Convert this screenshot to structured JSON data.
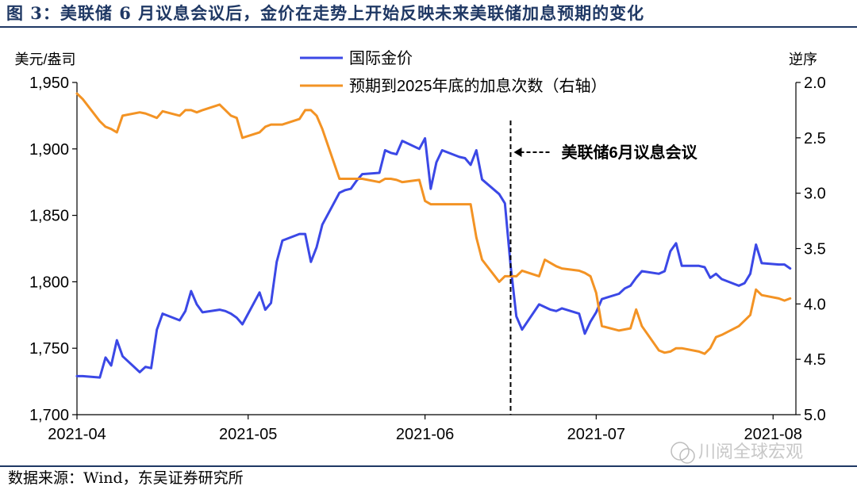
{
  "title": "图 3：美联储 6 月议息会议后，金价在走势上开始反映未来美联储加息预期的变化",
  "source": "数据来源：Wind，东吴证券研究所",
  "watermark": "川阅全球宏观",
  "colors": {
    "gold": "#3b48e6",
    "hikes": "#f39324",
    "title": "#1f3864",
    "axis": "#000000"
  },
  "chart_data": {
    "type": "line",
    "ylabel_left": "美元/盎司",
    "ylabel_right": "逆序",
    "y_left": {
      "min": 1700,
      "max": 1950,
      "ticks": [
        1700,
        1750,
        1800,
        1850,
        1900,
        1950
      ],
      "tick_labels": [
        "1,700",
        "1,750",
        "1,800",
        "1,850",
        "1,900",
        "1,950"
      ]
    },
    "y_right": {
      "min": 2.0,
      "max": 5.0,
      "inverted": true,
      "ticks": [
        2.0,
        2.5,
        3.0,
        3.5,
        4.0,
        4.5,
        5.0
      ],
      "tick_labels": [
        "2.0",
        "2.5",
        "3.0",
        "3.5",
        "4.0",
        "4.5",
        "5.0"
      ]
    },
    "x": {
      "start": "2021-04-01",
      "end": "2021-08-05",
      "ticks": [
        "2021-04-01",
        "2021-05-01",
        "2021-06-01",
        "2021-07-01",
        "2021-08-01"
      ],
      "tick_labels": [
        "2021-04",
        "2021-05",
        "2021-06",
        "2021-07",
        "2021-08"
      ]
    },
    "legend_position": "top-center",
    "annotation": {
      "label": "美联储6月议息会议",
      "date": "2021-06-16"
    },
    "series": [
      {
        "name": "国际金价",
        "axis": "left",
        "color": "#3b48e6",
        "points": [
          [
            "2021-04-01",
            1729
          ],
          [
            "2021-04-02",
            1729
          ],
          [
            "2021-04-05",
            1728
          ],
          [
            "2021-04-06",
            1743
          ],
          [
            "2021-04-07",
            1737
          ],
          [
            "2021-04-08",
            1756
          ],
          [
            "2021-04-09",
            1744
          ],
          [
            "2021-04-12",
            1732
          ],
          [
            "2021-04-13",
            1736
          ],
          [
            "2021-04-14",
            1735
          ],
          [
            "2021-04-15",
            1764
          ],
          [
            "2021-04-16",
            1776
          ],
          [
            "2021-04-19",
            1771
          ],
          [
            "2021-04-20",
            1778
          ],
          [
            "2021-04-21",
            1793
          ],
          [
            "2021-04-22",
            1783
          ],
          [
            "2021-04-23",
            1777
          ],
          [
            "2021-04-26",
            1779
          ],
          [
            "2021-04-27",
            1778
          ],
          [
            "2021-04-28",
            1776
          ],
          [
            "2021-04-29",
            1773
          ],
          [
            "2021-04-30",
            1768
          ],
          [
            "2021-05-03",
            1792
          ],
          [
            "2021-05-04",
            1779
          ],
          [
            "2021-05-05",
            1784
          ],
          [
            "2021-05-06",
            1815
          ],
          [
            "2021-05-07",
            1831
          ],
          [
            "2021-05-10",
            1836
          ],
          [
            "2021-05-11",
            1836
          ],
          [
            "2021-05-12",
            1815
          ],
          [
            "2021-05-13",
            1826
          ],
          [
            "2021-05-14",
            1843
          ],
          [
            "2021-05-17",
            1867
          ],
          [
            "2021-05-18",
            1869
          ],
          [
            "2021-05-19",
            1870
          ],
          [
            "2021-05-20",
            1876
          ],
          [
            "2021-05-21",
            1881
          ],
          [
            "2021-05-24",
            1882
          ],
          [
            "2021-05-25",
            1899
          ],
          [
            "2021-05-26",
            1897
          ],
          [
            "2021-05-27",
            1896
          ],
          [
            "2021-05-28",
            1906
          ],
          [
            "2021-05-31",
            1900
          ],
          [
            "2021-06-01",
            1908
          ],
          [
            "2021-06-02",
            1870
          ],
          [
            "2021-06-03",
            1890
          ],
          [
            "2021-06-04",
            1899
          ],
          [
            "2021-06-07",
            1894
          ],
          [
            "2021-06-08",
            1893
          ],
          [
            "2021-06-09",
            1888
          ],
          [
            "2021-06-10",
            1899
          ],
          [
            "2021-06-11",
            1877
          ],
          [
            "2021-06-14",
            1866
          ],
          [
            "2021-06-15",
            1859
          ],
          [
            "2021-06-16",
            1812
          ],
          [
            "2021-06-17",
            1774
          ],
          [
            "2021-06-18",
            1764
          ],
          [
            "2021-06-21",
            1783
          ],
          [
            "2021-06-22",
            1781
          ],
          [
            "2021-06-23",
            1779
          ],
          [
            "2021-06-24",
            1778
          ],
          [
            "2021-06-25",
            1780
          ],
          [
            "2021-06-28",
            1776
          ],
          [
            "2021-06-29",
            1761
          ],
          [
            "2021-06-30",
            1770
          ],
          [
            "2021-07-01",
            1777
          ],
          [
            "2021-07-02",
            1787
          ],
          [
            "2021-07-05",
            1791
          ],
          [
            "2021-07-06",
            1795
          ],
          [
            "2021-07-07",
            1797
          ],
          [
            "2021-07-08",
            1803
          ],
          [
            "2021-07-09",
            1808
          ],
          [
            "2021-07-12",
            1806
          ],
          [
            "2021-07-13",
            1808
          ],
          [
            "2021-07-14",
            1823
          ],
          [
            "2021-07-15",
            1829
          ],
          [
            "2021-07-16",
            1812
          ],
          [
            "2021-07-19",
            1812
          ],
          [
            "2021-07-20",
            1811
          ],
          [
            "2021-07-21",
            1803
          ],
          [
            "2021-07-22",
            1806
          ],
          [
            "2021-07-23",
            1802
          ],
          [
            "2021-07-26",
            1797
          ],
          [
            "2021-07-27",
            1799
          ],
          [
            "2021-07-28",
            1806
          ],
          [
            "2021-07-29",
            1828
          ],
          [
            "2021-07-30",
            1814
          ],
          [
            "2021-08-02",
            1813
          ],
          [
            "2021-08-03",
            1813
          ],
          [
            "2021-08-04",
            1810
          ]
        ]
      },
      {
        "name": "预期到2025年底的加息次数（右轴）",
        "axis": "right",
        "color": "#f39324",
        "points": [
          [
            "2021-04-01",
            2.1
          ],
          [
            "2021-04-02",
            2.15
          ],
          [
            "2021-04-05",
            2.35
          ],
          [
            "2021-04-06",
            2.4
          ],
          [
            "2021-04-07",
            2.42
          ],
          [
            "2021-04-08",
            2.45
          ],
          [
            "2021-04-09",
            2.3
          ],
          [
            "2021-04-12",
            2.27
          ],
          [
            "2021-04-13",
            2.28
          ],
          [
            "2021-04-14",
            2.3
          ],
          [
            "2021-04-15",
            2.32
          ],
          [
            "2021-04-16",
            2.26
          ],
          [
            "2021-04-19",
            2.3
          ],
          [
            "2021-04-20",
            2.25
          ],
          [
            "2021-04-21",
            2.25
          ],
          [
            "2021-04-22",
            2.27
          ],
          [
            "2021-04-23",
            2.25
          ],
          [
            "2021-04-26",
            2.2
          ],
          [
            "2021-04-27",
            2.25
          ],
          [
            "2021-04-28",
            2.3
          ],
          [
            "2021-04-29",
            2.32
          ],
          [
            "2021-04-30",
            2.5
          ],
          [
            "2021-05-03",
            2.45
          ],
          [
            "2021-05-04",
            2.4
          ],
          [
            "2021-05-05",
            2.38
          ],
          [
            "2021-05-06",
            2.38
          ],
          [
            "2021-05-07",
            2.38
          ],
          [
            "2021-05-10",
            2.33
          ],
          [
            "2021-05-11",
            2.25
          ],
          [
            "2021-05-12",
            2.25
          ],
          [
            "2021-05-13",
            2.3
          ],
          [
            "2021-05-14",
            2.42
          ],
          [
            "2021-05-17",
            2.87
          ],
          [
            "2021-05-18",
            2.87
          ],
          [
            "2021-05-19",
            2.87
          ],
          [
            "2021-05-20",
            2.87
          ],
          [
            "2021-05-21",
            2.87
          ],
          [
            "2021-05-24",
            2.9
          ],
          [
            "2021-05-25",
            2.87
          ],
          [
            "2021-05-26",
            2.87
          ],
          [
            "2021-05-27",
            2.88
          ],
          [
            "2021-05-28",
            2.9
          ],
          [
            "2021-05-31",
            2.88
          ],
          [
            "2021-06-01",
            3.07
          ],
          [
            "2021-06-02",
            3.1
          ],
          [
            "2021-06-03",
            3.1
          ],
          [
            "2021-06-04",
            3.1
          ],
          [
            "2021-06-07",
            3.1
          ],
          [
            "2021-06-08",
            3.1
          ],
          [
            "2021-06-09",
            3.1
          ],
          [
            "2021-06-10",
            3.4
          ],
          [
            "2021-06-11",
            3.6
          ],
          [
            "2021-06-14",
            3.8
          ],
          [
            "2021-06-15",
            3.75
          ],
          [
            "2021-06-16",
            3.75
          ],
          [
            "2021-06-17",
            3.75
          ],
          [
            "2021-06-18",
            3.7
          ],
          [
            "2021-06-21",
            3.75
          ],
          [
            "2021-06-22",
            3.6
          ],
          [
            "2021-06-23",
            3.63
          ],
          [
            "2021-06-24",
            3.66
          ],
          [
            "2021-06-25",
            3.68
          ],
          [
            "2021-06-28",
            3.7
          ],
          [
            "2021-06-29",
            3.72
          ],
          [
            "2021-06-30",
            3.75
          ],
          [
            "2021-07-01",
            3.9
          ],
          [
            "2021-07-02",
            4.2
          ],
          [
            "2021-07-05",
            4.24
          ],
          [
            "2021-07-06",
            4.23
          ],
          [
            "2021-07-07",
            4.22
          ],
          [
            "2021-07-08",
            4.05
          ],
          [
            "2021-07-09",
            4.2
          ],
          [
            "2021-07-12",
            4.42
          ],
          [
            "2021-07-13",
            4.44
          ],
          [
            "2021-07-14",
            4.43
          ],
          [
            "2021-07-15",
            4.4
          ],
          [
            "2021-07-16",
            4.4
          ],
          [
            "2021-07-19",
            4.43
          ],
          [
            "2021-07-20",
            4.45
          ],
          [
            "2021-07-21",
            4.4
          ],
          [
            "2021-07-22",
            4.3
          ],
          [
            "2021-07-23",
            4.28
          ],
          [
            "2021-07-26",
            4.2
          ],
          [
            "2021-07-27",
            4.15
          ],
          [
            "2021-07-28",
            4.1
          ],
          [
            "2021-07-29",
            3.87
          ],
          [
            "2021-07-30",
            3.92
          ],
          [
            "2021-08-02",
            3.95
          ],
          [
            "2021-08-03",
            3.97
          ],
          [
            "2021-08-04",
            3.95
          ]
        ]
      }
    ]
  }
}
